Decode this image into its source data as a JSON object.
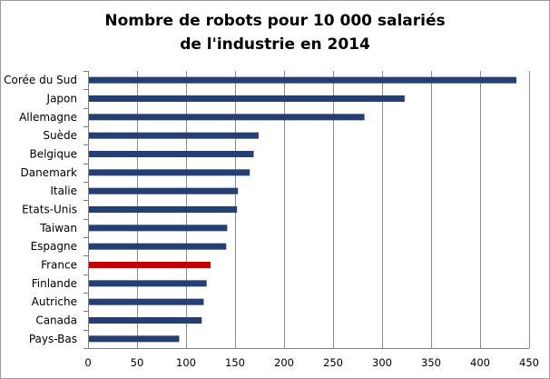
{
  "chart_data": {
    "type": "bar",
    "orientation": "horizontal",
    "title_lines": [
      "Nombre de robots  pour  10 000 salariés",
      "de l'industrie  en 2014"
    ],
    "categories": [
      "Corée du Sud",
      "Japon",
      "Allemagne",
      "Suède",
      "Belgique",
      "Danemark",
      "Italie",
      "Etats-Unis",
      "Taiwan",
      "Espagne",
      "France",
      "Finlande",
      "Autriche",
      "Canada",
      "Pays-Bas"
    ],
    "values": [
      437,
      323,
      282,
      174,
      169,
      165,
      153,
      152,
      142,
      141,
      125,
      121,
      118,
      116,
      93
    ],
    "xlim": [
      0,
      450
    ],
    "x_ticks": [
      0,
      50,
      100,
      150,
      200,
      250,
      300,
      350,
      400,
      450
    ],
    "grid": "vertical",
    "colors": {
      "default": "#243f73",
      "highlight": "#c00000"
    },
    "highlight": "France"
  }
}
